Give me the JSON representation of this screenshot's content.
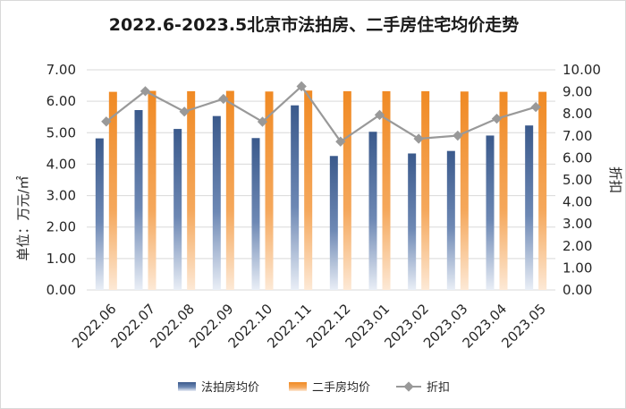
{
  "chart_data": {
    "type": "bar",
    "title": "2022.6-2023.5北京市法拍房、二手房住宅均价走势",
    "categories": [
      "2022.06",
      "2022.07",
      "2022.08",
      "2022.09",
      "2022.10",
      "2022.11",
      "2022.12",
      "2023.01",
      "2023.02",
      "2023.03",
      "2023.04",
      "2023.05"
    ],
    "ylabel": "单位：万元/㎡",
    "y2label": "折扣",
    "ylim": [
      0,
      7
    ],
    "y2lim": [
      0,
      10
    ],
    "yticks": [
      "0.00",
      "1.00",
      "2.00",
      "3.00",
      "4.00",
      "5.00",
      "6.00",
      "7.00"
    ],
    "y2ticks": [
      "0.00",
      "1.00",
      "2.00",
      "3.00",
      "4.00",
      "5.00",
      "6.00",
      "7.00",
      "8.00",
      "9.00",
      "10.00"
    ],
    "grid": true,
    "legend_position": "bottom",
    "series": [
      {
        "name": "法拍房均价",
        "type": "bar",
        "axis": "left",
        "color": "#3b5a8c",
        "values": [
          4.82,
          5.72,
          5.12,
          5.53,
          4.83,
          5.87,
          4.26,
          5.03,
          4.34,
          4.42,
          4.91,
          5.23
        ]
      },
      {
        "name": "二手房均价",
        "type": "bar",
        "axis": "left",
        "color": "#f08a24",
        "values": [
          6.3,
          6.33,
          6.32,
          6.33,
          6.31,
          6.34,
          6.32,
          6.32,
          6.32,
          6.31,
          6.3,
          6.3
        ]
      },
      {
        "name": "折扣",
        "type": "line",
        "axis": "right",
        "color": "#999999",
        "values": [
          7.65,
          9.03,
          8.1,
          8.68,
          7.64,
          9.25,
          6.74,
          7.95,
          6.87,
          7.01,
          7.78,
          8.31
        ]
      }
    ]
  }
}
